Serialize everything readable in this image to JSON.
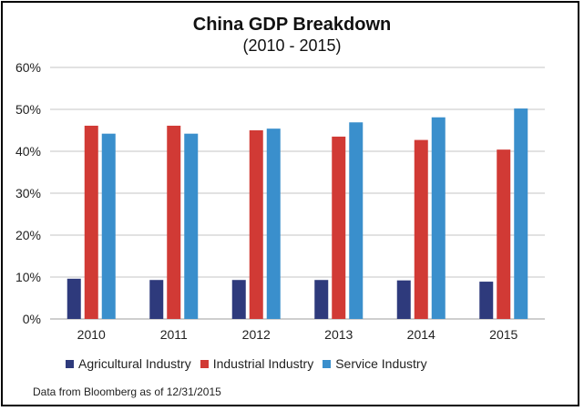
{
  "chart_data": {
    "type": "bar",
    "title": "China GDP Breakdown",
    "subtitle": "(2010 - 2015)",
    "categories": [
      "2010",
      "2011",
      "2012",
      "2013",
      "2014",
      "2015"
    ],
    "series": [
      {
        "name": "Agricultural Industry",
        "color": "#2e3a7c",
        "values": [
          9.6,
          9.3,
          9.3,
          9.3,
          9.2,
          8.9
        ]
      },
      {
        "name": "Industrial Industry",
        "color": "#d13a35",
        "values": [
          46.1,
          46.1,
          45.0,
          43.5,
          42.7,
          40.4
        ]
      },
      {
        "name": "Service Industry",
        "color": "#3a8fcc",
        "values": [
          44.2,
          44.2,
          45.4,
          46.9,
          48.1,
          50.2
        ]
      }
    ],
    "ylim": [
      0,
      60
    ],
    "yticks": [
      "0%",
      "10%",
      "20%",
      "30%",
      "40%",
      "50%",
      "60%"
    ],
    "ytick_values": [
      0,
      10,
      20,
      30,
      40,
      50,
      60
    ],
    "grid": true,
    "legend": "bottom",
    "xlabel": "",
    "ylabel": ""
  },
  "source_note": "Data from Bloomberg as of 12/31/2015"
}
